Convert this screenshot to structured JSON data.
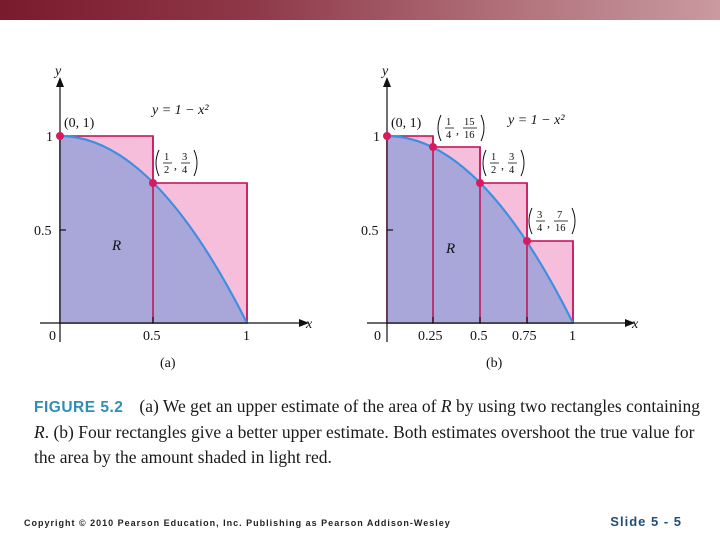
{
  "figure": {
    "panels": [
      {
        "tag": "(a)",
        "y_axis": "y",
        "x_axis": "x",
        "curve_label": "y = 1 − x²",
        "region_label": "R",
        "y_ticks": [
          "1",
          "0.5"
        ],
        "x_ticks": [
          "0",
          "0.5",
          "1"
        ],
        "point_labels": [
          {
            "text": "(0, 1)"
          },
          {
            "num1": "1",
            "den1": "2",
            "num2": "3",
            "den2": "4"
          }
        ]
      },
      {
        "tag": "(b)",
        "y_axis": "y",
        "x_axis": "x",
        "curve_label": "y = 1 − x²",
        "region_label": "R",
        "y_ticks": [
          "1",
          "0.5"
        ],
        "x_ticks": [
          "0",
          "0.25",
          "0.5",
          "0.75",
          "1"
        ],
        "point_labels": [
          {
            "text": "(0, 1)"
          },
          {
            "num1": "1",
            "den1": "4",
            "num2": "15",
            "den2": "16"
          },
          {
            "num1": "1",
            "den1": "2",
            "num2": "3",
            "den2": "4"
          },
          {
            "num1": "3",
            "den1": "4",
            "num2": "7",
            "den2": "16"
          }
        ]
      }
    ],
    "colors": {
      "curve": "#3f8fe0",
      "region": "#a9a6da",
      "overshoot": "#f6bedb",
      "rect_edge": "#c2185b",
      "point": "#d81b60"
    }
  },
  "caption": {
    "label": "FIGURE 5.2",
    "part1": "(a) We get an upper estimate of the area of ",
    "R1": "R",
    "part2": " by using two rectangles containing ",
    "R2": "R",
    "part3": ". (b) Four rectangles give a better upper estimate. Both estimates overshoot the true value for the area by the amount shaded in light red."
  },
  "footer": {
    "copyright": "Copyright © 2010 Pearson Education, Inc. Publishing as Pearson Addison-Wesley",
    "slide": "Slide 5 - 5"
  }
}
